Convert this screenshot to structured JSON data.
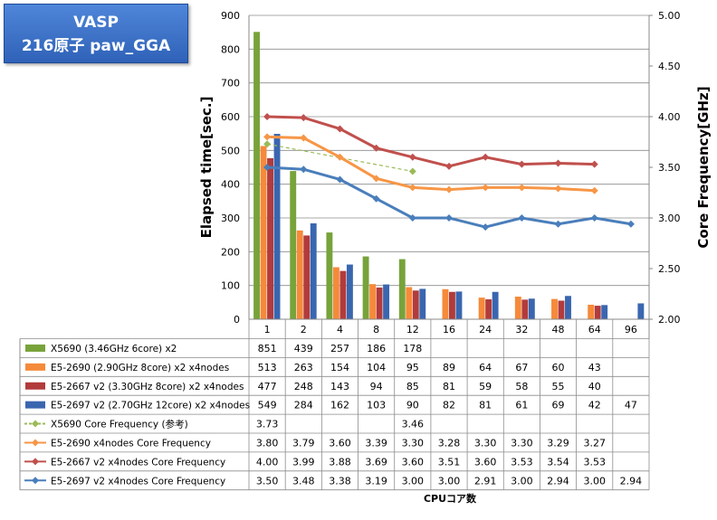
{
  "title_box": {
    "line1": "VASP",
    "line2": "216原子 paw_GGA"
  },
  "chart_data": {
    "type": "bar",
    "categories": [
      "1",
      "2",
      "4",
      "8",
      "12",
      "16",
      "24",
      "32",
      "48",
      "64",
      "96"
    ],
    "ylabel": "Elapsed time[sec.]",
    "y2label": "Core Frequency[GHz]",
    "xlabel": "CPUコア数",
    "ylim": [
      0,
      900
    ],
    "yticks": [
      "0",
      "100",
      "200",
      "300",
      "400",
      "500",
      "600",
      "700",
      "800",
      "900"
    ],
    "y2lim": [
      2.0,
      5.0
    ],
    "y2ticks": [
      "2.00",
      "2.50",
      "3.00",
      "3.50",
      "4.00",
      "4.50",
      "5.00"
    ],
    "bar_series": [
      {
        "name": "X5690 (3.46GHz 6core) x2",
        "color": "#77a33a",
        "values": [
          851,
          439,
          257,
          186,
          178,
          null,
          null,
          null,
          null,
          null,
          null
        ],
        "labels": [
          "851",
          "439",
          "257",
          "186",
          "178",
          "",
          "",
          "",
          "",
          "",
          ""
        ]
      },
      {
        "name": "E5-2690 (2.90GHz 8core) x2 x4nodes",
        "color": "#f58a3a",
        "values": [
          513,
          263,
          154,
          104,
          95,
          89,
          64,
          67,
          60,
          43,
          null
        ],
        "labels": [
          "513",
          "263",
          "154",
          "104",
          "95",
          "89",
          "64",
          "67",
          "60",
          "43",
          ""
        ]
      },
      {
        "name": "E5-2667 v2 (3.30GHz 8core) x2 x4nodes",
        "color": "#b23b3b",
        "values": [
          477,
          248,
          143,
          94,
          85,
          81,
          59,
          58,
          55,
          40,
          null
        ],
        "labels": [
          "477",
          "248",
          "143",
          "94",
          "85",
          "81",
          "59",
          "58",
          "55",
          "40",
          ""
        ]
      },
      {
        "name": "E5-2697 v2 (2.70GHz 12core) x2 x4nodes",
        "color": "#3a66b0",
        "values": [
          549,
          284,
          162,
          103,
          90,
          82,
          81,
          61,
          69,
          42,
          47
        ],
        "labels": [
          "549",
          "284",
          "162",
          "103",
          "90",
          "82",
          "81",
          "61",
          "69",
          "42",
          "47"
        ]
      }
    ],
    "line_series": [
      {
        "name": "X5690 Core Frequency (参考)",
        "color": "#9bbb59",
        "dashed": true,
        "values": [
          3.73,
          null,
          null,
          null,
          3.46,
          null,
          null,
          null,
          null,
          null,
          null
        ],
        "labels": [
          "3.73",
          "",
          "",
          "",
          "3.46",
          "",
          "",
          "",
          "",
          "",
          ""
        ]
      },
      {
        "name": "E5-2690 x4nodes Core Frequency",
        "color": "#f79646",
        "dashed": false,
        "values": [
          3.8,
          3.79,
          3.6,
          3.39,
          3.3,
          3.28,
          3.3,
          3.3,
          3.29,
          3.27,
          null
        ],
        "labels": [
          "3.80",
          "3.79",
          "3.60",
          "3.39",
          "3.30",
          "3.28",
          "3.30",
          "3.30",
          "3.29",
          "3.27",
          ""
        ]
      },
      {
        "name": "E5-2667 v2 x4nodes Core Frequency",
        "color": "#c0504d",
        "dashed": false,
        "values": [
          4.0,
          3.99,
          3.88,
          3.69,
          3.6,
          3.51,
          3.6,
          3.53,
          3.54,
          3.53,
          null
        ],
        "labels": [
          "4.00",
          "3.99",
          "3.88",
          "3.69",
          "3.60",
          "3.51",
          "3.60",
          "3.53",
          "3.54",
          "3.53",
          ""
        ]
      },
      {
        "name": "E5-2697 v2 x4nodes Core Frequency",
        "color": "#4a7ebb",
        "dashed": false,
        "values": [
          3.5,
          3.48,
          3.38,
          3.19,
          3.0,
          3.0,
          2.91,
          3.0,
          2.94,
          3.0,
          2.94
        ],
        "labels": [
          "3.50",
          "3.48",
          "3.38",
          "3.19",
          "3.00",
          "3.00",
          "2.91",
          "3.00",
          "2.94",
          "3.00",
          "2.94"
        ]
      }
    ]
  }
}
